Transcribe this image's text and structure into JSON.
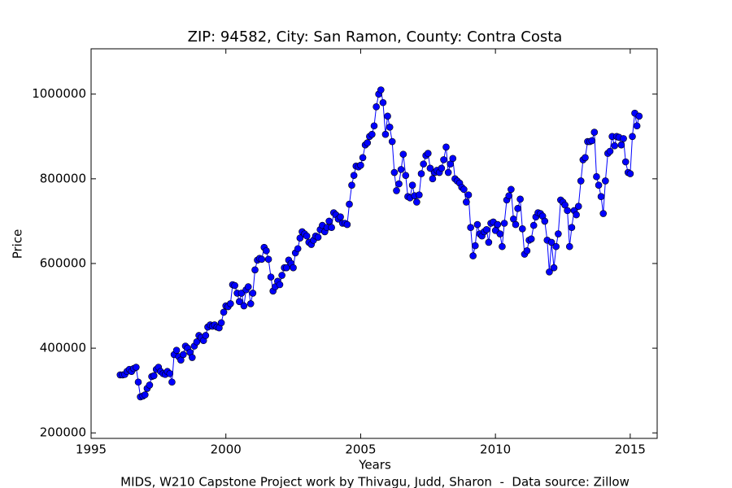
{
  "chart_data": {
    "type": "line",
    "title": "ZIP: 94582, City: San Ramon, County: Contra Costa",
    "xlabel": "Years",
    "ylabel": "Price",
    "footer": "MIDS, W210 Capstone Project work by Thivagu, Judd, Sharon  -  Data source: Zillow",
    "xlim": [
      1995,
      2016
    ],
    "xticks": [
      1995,
      2000,
      2005,
      2010,
      2015
    ],
    "ylim": [
      187000,
      1107000
    ],
    "yticks": [
      200000,
      400000,
      600000,
      800000,
      1000000
    ],
    "grid": false,
    "log_scale": false,
    "series": [
      {
        "name": "Price",
        "color": "#0000ff",
        "x": [
          1996.08,
          1996.17,
          1996.25,
          1996.33,
          1996.42,
          1996.5,
          1996.58,
          1996.67,
          1996.75,
          1996.83,
          1996.92,
          1997,
          1997.08,
          1997.17,
          1997.25,
          1997.33,
          1997.42,
          1997.5,
          1997.58,
          1997.67,
          1997.75,
          1997.83,
          1997.92,
          1998,
          1998.08,
          1998.17,
          1998.25,
          1998.33,
          1998.42,
          1998.5,
          1998.58,
          1998.67,
          1998.75,
          1998.83,
          1998.92,
          1999,
          1999.08,
          1999.17,
          1999.25,
          1999.33,
          1999.42,
          1999.5,
          1999.58,
          1999.67,
          1999.75,
          1999.83,
          1999.92,
          2000,
          2000.08,
          2000.17,
          2000.25,
          2000.33,
          2000.42,
          2000.5,
          2000.58,
          2000.67,
          2000.75,
          2000.83,
          2000.92,
          2001,
          2001.08,
          2001.17,
          2001.25,
          2001.33,
          2001.42,
          2001.5,
          2001.58,
          2001.67,
          2001.75,
          2001.83,
          2001.92,
          2002,
          2002.08,
          2002.17,
          2002.25,
          2002.33,
          2002.42,
          2002.5,
          2002.58,
          2002.67,
          2002.75,
          2002.83,
          2002.92,
          2003,
          2003.08,
          2003.17,
          2003.25,
          2003.33,
          2003.42,
          2003.5,
          2003.58,
          2003.67,
          2003.75,
          2003.83,
          2003.92,
          2004,
          2004.08,
          2004.17,
          2004.25,
          2004.33,
          2004.42,
          2004.5,
          2004.58,
          2004.67,
          2004.75,
          2004.83,
          2004.92,
          2005,
          2005.08,
          2005.17,
          2005.25,
          2005.33,
          2005.42,
          2005.5,
          2005.58,
          2005.67,
          2005.75,
          2005.83,
          2005.92,
          2006,
          2006.08,
          2006.17,
          2006.25,
          2006.33,
          2006.42,
          2006.5,
          2006.58,
          2006.67,
          2006.75,
          2006.83,
          2006.92,
          2007,
          2007.08,
          2007.17,
          2007.25,
          2007.33,
          2007.42,
          2007.5,
          2007.58,
          2007.67,
          2007.75,
          2007.83,
          2007.92,
          2008,
          2008.08,
          2008.17,
          2008.25,
          2008.33,
          2008.42,
          2008.5,
          2008.58,
          2008.67,
          2008.75,
          2008.83,
          2008.92,
          2009,
          2009.08,
          2009.17,
          2009.25,
          2009.33,
          2009.42,
          2009.5,
          2009.58,
          2009.67,
          2009.75,
          2009.83,
          2009.92,
          2010,
          2010.08,
          2010.17,
          2010.25,
          2010.33,
          2010.42,
          2010.5,
          2010.58,
          2010.67,
          2010.75,
          2010.83,
          2010.92,
          2011,
          2011.08,
          2011.17,
          2011.25,
          2011.33,
          2011.42,
          2011.5,
          2011.58,
          2011.67,
          2011.75,
          2011.83,
          2011.92,
          2012,
          2012.08,
          2012.17,
          2012.25,
          2012.33,
          2012.42,
          2012.5,
          2012.58,
          2012.67,
          2012.75,
          2012.83,
          2012.92,
          2013,
          2013.08,
          2013.17,
          2013.25,
          2013.33,
          2013.42,
          2013.5,
          2013.58,
          2013.67,
          2013.75,
          2013.83,
          2013.92,
          2014,
          2014.08,
          2014.17,
          2014.25,
          2014.33,
          2014.42,
          2014.5,
          2014.58,
          2014.67,
          2014.75,
          2014.83,
          2014.92,
          2015,
          2015.08,
          2015.17,
          2015.25,
          2015.33
        ],
        "values": [
          337000,
          337000,
          338000,
          345000,
          350000,
          345000,
          352000,
          355000,
          320000,
          285000,
          287000,
          290000,
          305000,
          313000,
          333000,
          335000,
          350000,
          355000,
          345000,
          340000,
          338000,
          345000,
          340000,
          320000,
          385000,
          395000,
          380000,
          372000,
          385000,
          405000,
          400000,
          390000,
          378000,
          405000,
          415000,
          430000,
          425000,
          418000,
          430000,
          450000,
          455000,
          452000,
          455000,
          450000,
          448000,
          460000,
          485000,
          500000,
          498000,
          505000,
          550000,
          548000,
          530000,
          510000,
          530000,
          500000,
          538000,
          545000,
          505000,
          530000,
          585000,
          608000,
          612000,
          610000,
          638000,
          630000,
          610000,
          568000,
          535000,
          545000,
          558000,
          550000,
          572000,
          590000,
          590000,
          608000,
          600000,
          590000,
          625000,
          635000,
          660000,
          675000,
          670000,
          665000,
          650000,
          645000,
          655000,
          665000,
          662000,
          680000,
          690000,
          675000,
          685000,
          700000,
          685000,
          720000,
          715000,
          705000,
          710000,
          695000,
          695000,
          692000,
          740000,
          785000,
          808000,
          830000,
          828000,
          832000,
          850000,
          880000,
          885000,
          900000,
          905000,
          925000,
          970000,
          1000000,
          1010000,
          980000,
          905000,
          948000,
          922000,
          888000,
          815000,
          772000,
          788000,
          822000,
          858000,
          808000,
          758000,
          755000,
          785000,
          760000,
          745000,
          762000,
          812000,
          835000,
          855000,
          860000,
          825000,
          800000,
          815000,
          820000,
          815000,
          825000,
          845000,
          875000,
          815000,
          835000,
          848000,
          800000,
          795000,
          790000,
          780000,
          775000,
          745000,
          762000,
          685000,
          618000,
          642000,
          692000,
          670000,
          665000,
          675000,
          680000,
          650000,
          695000,
          698000,
          678000,
          692000,
          670000,
          640000,
          695000,
          750000,
          760000,
          775000,
          705000,
          692000,
          730000,
          752000,
          682000,
          622000,
          630000,
          655000,
          658000,
          690000,
          710000,
          720000,
          718000,
          712000,
          700000,
          655000,
          580000,
          650000,
          590000,
          640000,
          670000,
          750000,
          745000,
          738000,
          725000,
          640000,
          685000,
          725000,
          715000,
          735000,
          795000,
          845000,
          850000,
          888000,
          888000,
          890000,
          910000,
          805000,
          785000,
          758000,
          718000,
          795000,
          860000,
          865000,
          900000,
          878000,
          900000,
          898000,
          880000,
          895000,
          840000,
          815000,
          812000,
          900000,
          955000,
          925000,
          948000
        ]
      }
    ]
  }
}
